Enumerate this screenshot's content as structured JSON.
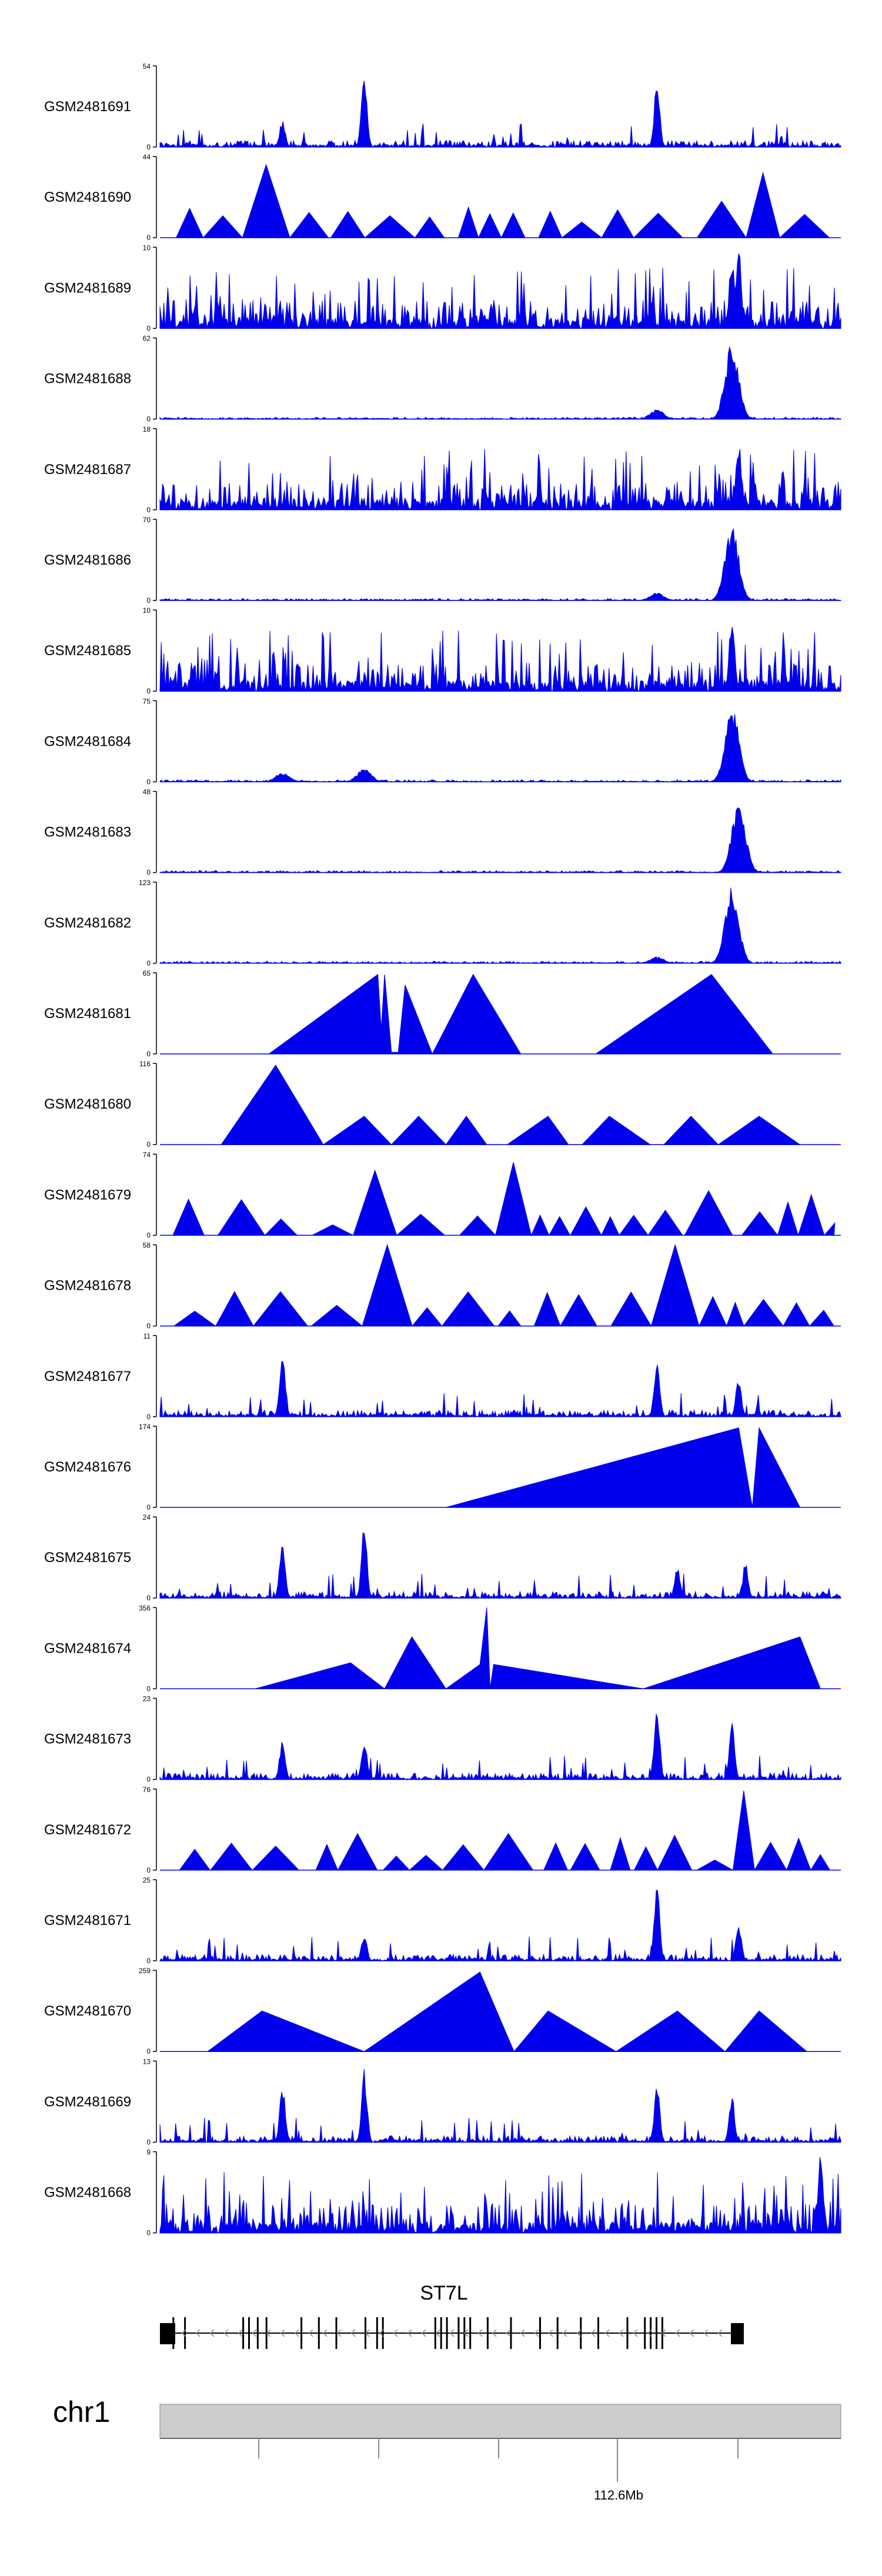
{
  "chart_data": {
    "type": "area",
    "title": "",
    "xlabel": "",
    "ylabel": "",
    "colors": {
      "signal": "#0000ee",
      "axis": "#000000",
      "ideogram": "#cccccc",
      "gene": "#000000"
    },
    "tracks": [
      {
        "name": "GSM2481691",
        "ymax": "54",
        "ymin": "0",
        "style": "spiky",
        "peaks": [
          [
            0.18,
            0.35
          ],
          [
            0.3,
            1.0
          ],
          [
            0.73,
            0.85
          ]
        ]
      },
      {
        "name": "GSM2481690",
        "ymax": "44",
        "ymin": "0",
        "style": "triangles",
        "peaks": [
          [
            0.18,
            0.9
          ],
          [
            0.9,
            0.8
          ],
          [
            0.86,
            0.45
          ]
        ]
      },
      {
        "name": "GSM2481689",
        "ymax": "10",
        "ymin": "0",
        "style": "noisy",
        "peaks": [
          [
            0.84,
            0.9
          ],
          [
            0.85,
            1.0
          ]
        ]
      },
      {
        "name": "GSM2481688",
        "ymax": "62",
        "ymin": "0",
        "style": "quiet",
        "peaks": [
          [
            0.84,
            0.95
          ],
          [
            0.73,
            0.12
          ]
        ]
      },
      {
        "name": "GSM2481687",
        "ymax": "18",
        "ymin": "0",
        "style": "noisy",
        "peaks": [
          [
            0.85,
            0.9
          ]
        ]
      },
      {
        "name": "GSM2481686",
        "ymax": "70",
        "ymin": "0",
        "style": "quiet",
        "peaks": [
          [
            0.84,
            0.95
          ],
          [
            0.73,
            0.1
          ]
        ]
      },
      {
        "name": "GSM2481685",
        "ymax": "10",
        "ymin": "0",
        "style": "noisy",
        "peaks": [
          [
            0.84,
            0.95
          ]
        ]
      },
      {
        "name": "GSM2481684",
        "ymax": "75",
        "ymin": "0",
        "style": "quiet",
        "peaks": [
          [
            0.84,
            0.95
          ],
          [
            0.18,
            0.12
          ],
          [
            0.3,
            0.18
          ]
        ]
      },
      {
        "name": "GSM2481683",
        "ymax": "48",
        "ymin": "0",
        "style": "quiet",
        "peaks": [
          [
            0.85,
            0.9
          ]
        ]
      },
      {
        "name": "GSM2481682",
        "ymax": "123",
        "ymin": "0",
        "style": "quiet",
        "peaks": [
          [
            0.84,
            0.95
          ],
          [
            0.73,
            0.08
          ]
        ]
      },
      {
        "name": "GSM2481681",
        "ymax": "65",
        "ymin": "0",
        "style": "polyline",
        "points": [
          [
            0.16,
            0
          ],
          [
            0.32,
            0.98
          ],
          [
            0.325,
            0.3
          ],
          [
            0.33,
            0.98
          ],
          [
            0.34,
            0.02
          ],
          [
            0.35,
            0.02
          ],
          [
            0.36,
            0.85
          ],
          [
            0.4,
            0
          ],
          [
            0.46,
            0.98
          ],
          [
            0.53,
            0
          ],
          [
            0.54,
            0
          ],
          [
            0.64,
            0
          ],
          [
            0.81,
            0.98
          ],
          [
            0.9,
            0
          ]
        ]
      },
      {
        "name": "GSM2481680",
        "ymax": "116",
        "ymin": "0",
        "style": "polyline",
        "points": [
          [
            0.09,
            0
          ],
          [
            0.17,
            0.98
          ],
          [
            0.24,
            0
          ],
          [
            0.3,
            0.35
          ],
          [
            0.34,
            0
          ],
          [
            0.38,
            0.35
          ],
          [
            0.42,
            0
          ],
          [
            0.45,
            0.35
          ],
          [
            0.48,
            0
          ],
          [
            0.51,
            0
          ],
          [
            0.57,
            0.35
          ],
          [
            0.6,
            0
          ],
          [
            0.62,
            0
          ],
          [
            0.66,
            0.35
          ],
          [
            0.72,
            0
          ],
          [
            0.74,
            0
          ],
          [
            0.78,
            0.35
          ],
          [
            0.82,
            0
          ],
          [
            0.88,
            0.35
          ],
          [
            0.94,
            0
          ]
        ]
      },
      {
        "name": "GSM2481679",
        "ymax": "74",
        "ymin": "0",
        "style": "triangles",
        "peaks": [
          [
            0.3,
            0.8
          ],
          [
            0.52,
            0.9
          ],
          [
            0.84,
            0.55
          ],
          [
            0.97,
            0.5
          ]
        ]
      },
      {
        "name": "GSM2481678",
        "ymax": "58",
        "ymin": "0",
        "style": "triangles",
        "peaks": [
          [
            0.33,
            1.0
          ],
          [
            0.34,
            0.95
          ],
          [
            0.75,
            1.0
          ],
          [
            0.73,
            0.9
          ]
        ]
      },
      {
        "name": "GSM2481677",
        "ymax": "11",
        "ymin": "0",
        "style": "spiky",
        "peaks": [
          [
            0.18,
            0.95
          ],
          [
            0.73,
            0.75
          ],
          [
            0.85,
            0.5
          ]
        ]
      },
      {
        "name": "GSM2481676",
        "ymax": "174",
        "ymin": "0",
        "style": "polyline",
        "points": [
          [
            0.42,
            0
          ],
          [
            0.85,
            0.98
          ],
          [
            0.87,
            0
          ],
          [
            0.88,
            0.98
          ],
          [
            0.94,
            0
          ]
        ]
      },
      {
        "name": "GSM2481675",
        "ymax": "24",
        "ymin": "0",
        "style": "spiky",
        "peaks": [
          [
            0.18,
            0.75
          ],
          [
            0.3,
            0.95
          ],
          [
            0.76,
            0.4
          ],
          [
            0.86,
            0.45
          ]
        ]
      },
      {
        "name": "GSM2481674",
        "ymax": "356",
        "ymin": "0",
        "style": "polyline",
        "points": [
          [
            0.14,
            0
          ],
          [
            0.28,
            0.32
          ],
          [
            0.33,
            0
          ],
          [
            0.37,
            0.64
          ],
          [
            0.42,
            0
          ],
          [
            0.47,
            0.3
          ],
          [
            0.48,
            1.0
          ],
          [
            0.485,
            0
          ],
          [
            0.49,
            0.3
          ],
          [
            0.71,
            0
          ],
          [
            0.94,
            0.64
          ],
          [
            0.97,
            0
          ]
        ]
      },
      {
        "name": "GSM2481673",
        "ymax": "23",
        "ymin": "0",
        "style": "spiky",
        "peaks": [
          [
            0.73,
            0.95
          ],
          [
            0.84,
            0.7
          ],
          [
            0.18,
            0.55
          ],
          [
            0.3,
            0.55
          ]
        ]
      },
      {
        "name": "GSM2481672",
        "ymax": "76",
        "ymin": "0",
        "style": "triangles",
        "peaks": [
          [
            0.86,
            0.98
          ],
          [
            0.3,
            0.45
          ],
          [
            0.53,
            0.45
          ]
        ]
      },
      {
        "name": "GSM2481671",
        "ymax": "25",
        "ymin": "0",
        "style": "spiky",
        "peaks": [
          [
            0.73,
            0.95
          ],
          [
            0.85,
            0.5
          ],
          [
            0.3,
            0.35
          ]
        ]
      },
      {
        "name": "GSM2481670",
        "ymax": "259",
        "ymin": "0",
        "style": "polyline",
        "points": [
          [
            0.07,
            0
          ],
          [
            0.15,
            0.5
          ],
          [
            0.3,
            0
          ],
          [
            0.47,
            0.98
          ],
          [
            0.52,
            0
          ],
          [
            0.57,
            0.5
          ],
          [
            0.67,
            0
          ],
          [
            0.76,
            0.5
          ],
          [
            0.83,
            0
          ],
          [
            0.88,
            0.5
          ],
          [
            0.95,
            0
          ]
        ]
      },
      {
        "name": "GSM2481669",
        "ymax": "13",
        "ymin": "0",
        "style": "spiky",
        "peaks": [
          [
            0.3,
            0.95
          ],
          [
            0.18,
            0.7
          ],
          [
            0.73,
            0.75
          ],
          [
            0.84,
            0.6
          ]
        ]
      },
      {
        "name": "GSM2481668",
        "ymax": "9",
        "ymin": "0",
        "style": "noisy",
        "peaks": [
          [
            0.97,
            0.95
          ]
        ]
      }
    ],
    "gene": {
      "name": "ST7L",
      "strand": "-",
      "exons": [
        0.02,
        0.04,
        0.14,
        0.15,
        0.165,
        0.18,
        0.24,
        0.27,
        0.3,
        0.35,
        0.37,
        0.38,
        0.47,
        0.48,
        0.49,
        0.51,
        0.52,
        0.53,
        0.56,
        0.6,
        0.65,
        0.68,
        0.72,
        0.75,
        0.8,
        0.83,
        0.84,
        0.85,
        0.86
      ]
    },
    "chromosome": {
      "name": "chr1",
      "tick_label": "112.6Mb"
    }
  }
}
